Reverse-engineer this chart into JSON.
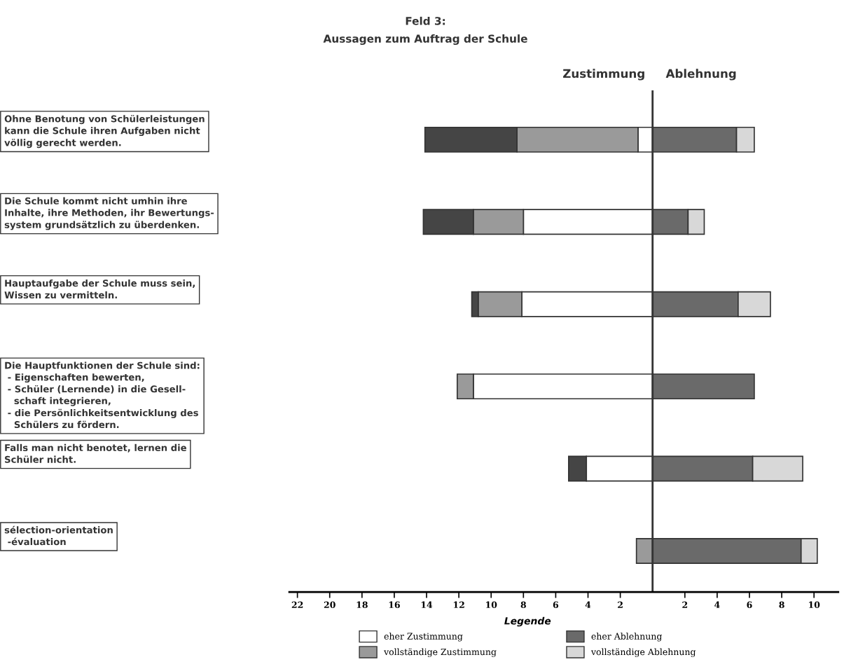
{
  "chart_data": {
    "type": "bar",
    "orientation": "horizontal",
    "stacked": true,
    "title": "Feld 3:\nAussagen zum Auftrag der Schule",
    "categories": [
      "Ohne Benotung von Schülerleistungen\nkann die Schule ihren Aufgaben nicht\nvöllig gerecht werden.",
      "Die Schule kommt nicht umhin ihre\nInhalte, ihre Methoden, ihr Bewertungs-\nsystem grundsätzlich zu überdenken.",
      "Hauptaufgabe der Schule muss sein,\nWissen zu vermitteln.",
      "Die Hauptfunktionen der Schule sind:\n - Eigenschaften bewerten,\n - Schüler (Lernende) in die Gesell-\n   schaft integrieren,\n - die Persönlichkeitsentwicklung des\n   Schülers zu fördern.",
      "Falls man nicht benotet, lernen die\nSchüler nicht.",
      "sélection-orientation\n -évaluation"
    ],
    "series": [
      {
        "name": "eher Zustimmung",
        "color": "#ffffff",
        "values": [
          -0.9,
          -8.0,
          -8.1,
          -11.1,
          -4.1,
          0
        ]
      },
      {
        "name": "vollständige Zustimmung",
        "color": "#9a9a9a",
        "values": [
          -7.5,
          -3.1,
          -2.7,
          -1.0,
          0,
          -1.0
        ]
      },
      {
        "color": "#454545",
        "values": [
          -5.7,
          -3.1,
          -0.4,
          0,
          -1.1,
          0
        ]
      },
      {
        "name": "eher Ablehnung",
        "color": "#6a6a6a",
        "values": [
          5.2,
          2.2,
          5.3,
          6.3,
          6.2,
          9.2
        ]
      },
      {
        "name": "vollständige Ablehnung",
        "color": "#d8d8d8",
        "values": [
          1.1,
          1.0,
          2.0,
          0,
          3.1,
          1.0
        ]
      }
    ],
    "xlim": [
      -22.5,
      11.5
    ],
    "xticks": [
      {
        "value": -22,
        "label": "22"
      },
      {
        "value": -20,
        "label": "20"
      },
      {
        "value": -18,
        "label": "18"
      },
      {
        "value": -16,
        "label": "16"
      },
      {
        "value": -14,
        "label": "14"
      },
      {
        "value": -12,
        "label": "12"
      },
      {
        "value": -10,
        "label": "10"
      },
      {
        "value": -8,
        "label": "8"
      },
      {
        "value": -6,
        "label": "6"
      },
      {
        "value": -4,
        "label": "4"
      },
      {
        "value": -2,
        "label": "2"
      },
      2,
      4,
      6,
      8,
      10
    ],
    "ref_lines": [
      {
        "axis": "x",
        "value": 0,
        "color": "#333333"
      }
    ],
    "annotations": [
      "Zustimmung",
      "Ablehnung"
    ],
    "legend_title": "Legende",
    "legend": "bottom",
    "grid": false
  }
}
